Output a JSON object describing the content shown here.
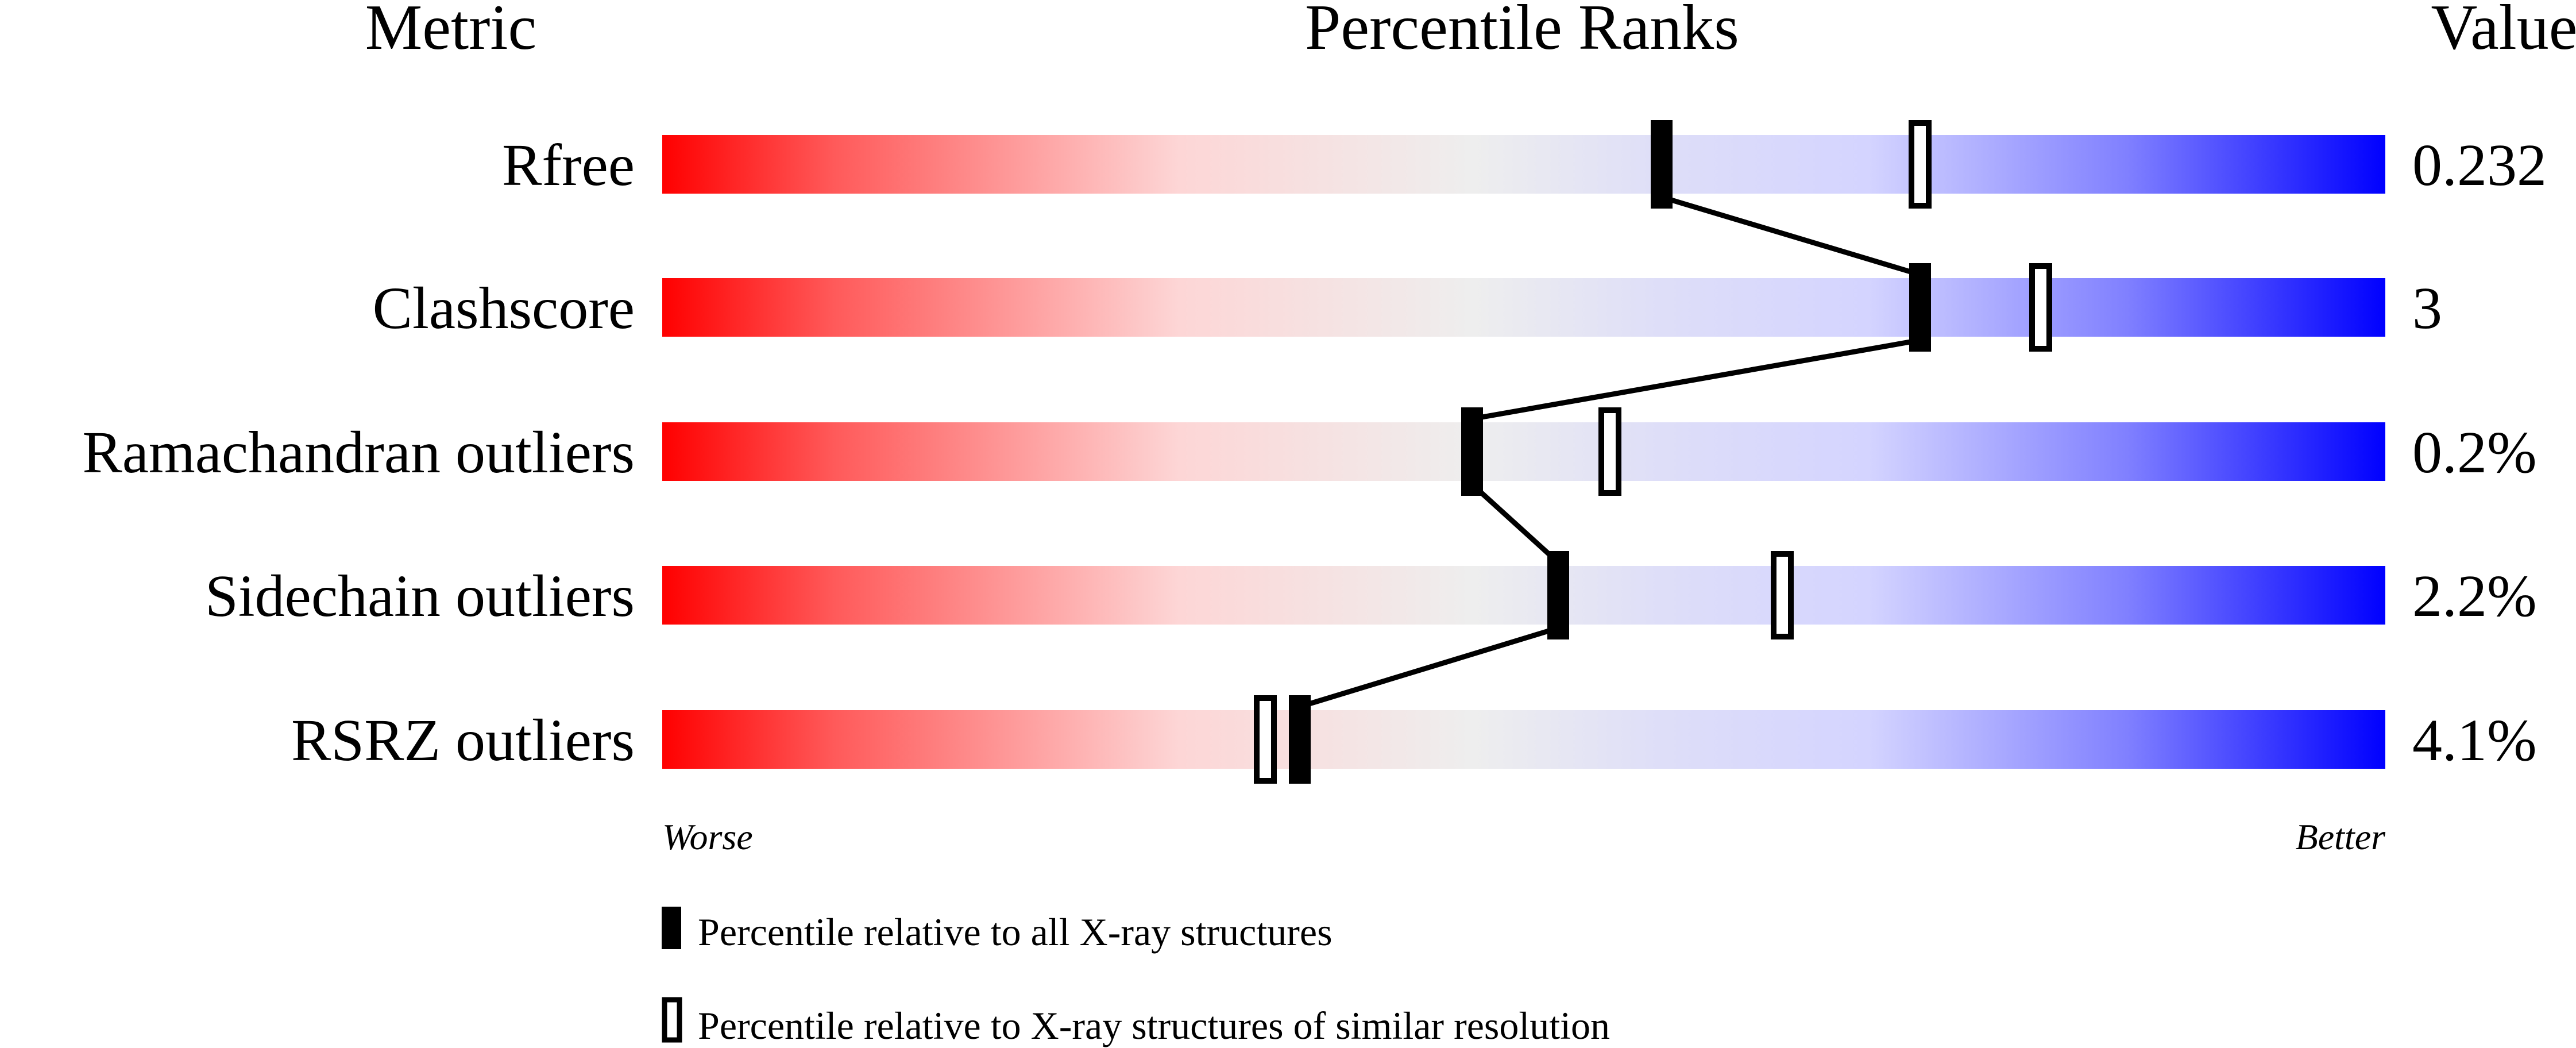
{
  "chart_data": {
    "type": "percentile-slider",
    "headers": {
      "metric": "Metric",
      "ranks": "Percentile Ranks",
      "value": "Value"
    },
    "axis": {
      "left": "Worse",
      "right": "Better",
      "range": [
        0,
        100
      ]
    },
    "colors": {
      "worse": "#ff0000",
      "middle": "#eeeeee",
      "better": "#0000ff",
      "marker": "#000000"
    },
    "metrics": [
      {
        "name": "Rfree",
        "value": "0.232",
        "percentile_all": 58,
        "percentile_similar": 73
      },
      {
        "name": "Clashscore",
        "value": "3",
        "percentile_all": 73,
        "percentile_similar": 80
      },
      {
        "name": "Ramachandran outliers",
        "value": "0.2%",
        "percentile_all": 47,
        "percentile_similar": 55
      },
      {
        "name": "Sidechain outliers",
        "value": "2.2%",
        "percentile_all": 52,
        "percentile_similar": 65
      },
      {
        "name": "RSRZ outliers",
        "value": "4.1%",
        "percentile_all": 37,
        "percentile_similar": 35
      }
    ],
    "legend": {
      "all": "Percentile relative to all X-ray structures",
      "similar": "Percentile relative to X-ray structures of similar resolution"
    }
  }
}
